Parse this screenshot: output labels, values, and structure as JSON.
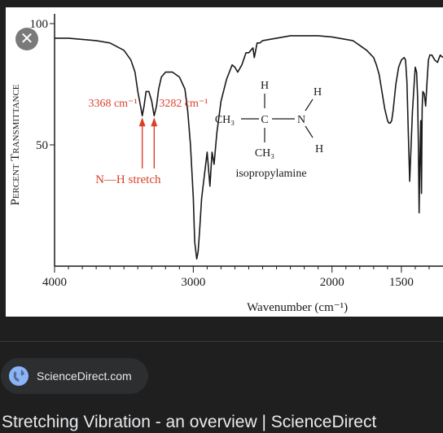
{
  "figure": {
    "close_glyph": "✕",
    "chart_data": {
      "type": "line",
      "ylabel": "Percent Transmittance",
      "xlabel": "Wavenumber (cm⁻¹)",
      "xlim": [
        4000,
        1200
      ],
      "ylim": [
        0,
        100
      ],
      "x_ticks": [
        "4000",
        "3000",
        "2000",
        "1500"
      ],
      "y_ticks": [
        "100",
        "50"
      ],
      "series": [
        {
          "x": [
            4000,
            3900,
            3800,
            3700,
            3600,
            3500,
            3450,
            3420,
            3400,
            3380,
            3368,
            3355,
            3340,
            3320,
            3300,
            3282,
            3265,
            3250,
            3230,
            3200,
            3150,
            3100,
            3060,
            3040,
            3020,
            3000,
            2990,
            2975,
            2965,
            2955,
            2940,
            2925,
            2900,
            2880,
            2865,
            2850,
            2830,
            2800,
            2760,
            2720,
            2700,
            2680,
            2650,
            2620,
            2600,
            2570,
            2560,
            2550,
            2540,
            2520,
            2500,
            2400,
            2300,
            2200,
            2100,
            2000,
            1950,
            1900,
            1850,
            1800,
            1750,
            1700,
            1680,
            1660,
            1640,
            1620,
            1600,
            1590,
            1580,
            1570,
            1560,
            1540,
            1520,
            1500,
            1480,
            1470,
            1460,
            1450,
            1440,
            1420,
            1400,
            1390,
            1383,
            1378,
            1372,
            1366,
            1360,
            1355,
            1350,
            1345,
            1335,
            1325,
            1315,
            1305,
            1300,
            1295,
            1280,
            1260,
            1240,
            1220,
            1200
          ],
          "y": [
            94,
            94,
            93.5,
            93,
            92,
            89,
            85,
            80,
            72,
            66,
            62,
            66,
            72,
            72,
            68,
            62,
            66,
            73,
            78,
            80,
            80,
            78,
            73,
            64,
            50,
            28,
            10,
            3,
            6,
            14,
            28,
            35,
            47,
            33,
            47,
            42,
            55,
            68,
            77,
            83,
            82,
            80,
            83,
            88,
            88,
            90,
            86,
            89,
            92,
            92,
            93,
            94,
            95,
            95,
            95,
            94.5,
            94,
            93.5,
            93,
            91,
            89,
            86,
            83,
            79,
            72,
            65,
            60,
            59,
            59,
            60,
            64,
            75,
            82,
            85,
            86,
            85,
            76,
            55,
            35,
            64,
            82,
            80,
            70,
            52,
            22,
            45,
            60,
            30,
            65,
            72,
            71,
            66,
            76,
            85,
            86,
            87,
            87,
            85,
            84,
            87,
            86
          ]
        }
      ],
      "annotations": [
        {
          "text": "3368 cm⁻¹",
          "x": 3368
        },
        {
          "text": "3282 cm⁻¹",
          "x": 3282
        },
        {
          "text": "N—H stretch"
        }
      ],
      "structure_labels": {
        "h_top": "H",
        "h_n_top": "H",
        "ch3_left": "CH₃",
        "c": "C",
        "n": "N",
        "ch3_bottom": "CH₃",
        "h_n_bottom": "H",
        "name": "isopropylamine"
      },
      "colors": {
        "curve": "#1a1a1a",
        "annotation": "#d9412b",
        "axis": "#1a1a1a"
      }
    }
  },
  "source": {
    "label": "ScienceDirect.com",
    "icon": "globe-icon"
  },
  "result_title": "Stretching Vibration - an overview | ScienceDirect"
}
